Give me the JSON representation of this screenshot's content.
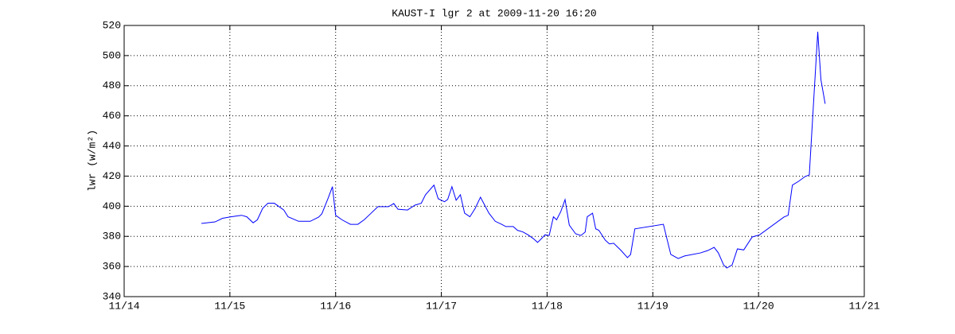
{
  "chart_data": {
    "type": "line",
    "title": "KAUST-I lgr 2 at 2009-11-20 16:20",
    "y_label": "lwr (w/m²)",
    "xlim": [
      14,
      21
    ],
    "xticks": [
      {
        "value": 14,
        "label": "11/14"
      },
      {
        "value": 15,
        "label": "11/15"
      },
      {
        "value": 16,
        "label": "11/16"
      },
      {
        "value": 17,
        "label": "11/17"
      },
      {
        "value": 18,
        "label": "11/18"
      },
      {
        "value": 19,
        "label": "11/19"
      },
      {
        "value": 20,
        "label": "11/20"
      },
      {
        "value": 21,
        "label": "11/21"
      }
    ],
    "ylim": [
      340,
      520
    ],
    "yticks": [
      340,
      360,
      380,
      400,
      420,
      440,
      460,
      480,
      500,
      520
    ],
    "grid": true,
    "series": [
      {
        "name": "lwr",
        "color": "#0000ff",
        "x": [
          14.73,
          14.86,
          14.93,
          15.01,
          15.11,
          15.16,
          15.22,
          15.26,
          15.31,
          15.36,
          15.42,
          15.51,
          15.55,
          15.65,
          15.76,
          15.84,
          15.87,
          15.93,
          15.97,
          16.0,
          16.06,
          16.14,
          16.21,
          16.27,
          16.33,
          16.4,
          16.5,
          16.55,
          16.59,
          16.68,
          16.75,
          16.81,
          16.85,
          16.93,
          16.97,
          17.03,
          17.06,
          17.1,
          17.14,
          17.18,
          17.22,
          17.27,
          17.32,
          17.37,
          17.45,
          17.51,
          17.57,
          17.61,
          17.68,
          17.72,
          17.77,
          17.82,
          17.87,
          17.91,
          17.94,
          17.98,
          18.02,
          18.06,
          18.09,
          18.13,
          18.17,
          18.21,
          18.27,
          18.32,
          18.36,
          18.38,
          18.43,
          18.46,
          18.49,
          18.55,
          18.59,
          18.63,
          18.7,
          18.76,
          18.79,
          18.83,
          19.1,
          19.17,
          19.24,
          19.3,
          19.45,
          19.52,
          19.58,
          19.62,
          19.67,
          19.7,
          19.75,
          19.8,
          19.86,
          19.94,
          20.01,
          20.24,
          20.28,
          20.32,
          20.38,
          20.44,
          20.48,
          20.56,
          20.59,
          20.63
        ],
        "values": [
          388.6,
          389.6,
          392,
          393,
          394,
          393,
          389,
          391,
          398.6,
          402,
          402,
          397.5,
          393,
          390,
          390,
          392.8,
          395,
          405.5,
          413,
          394,
          391,
          388,
          388,
          391,
          395,
          399.7,
          399.7,
          401.8,
          398,
          397.5,
          400.7,
          402,
          407.6,
          414,
          405,
          403,
          404.5,
          413,
          404,
          407.6,
          395.4,
          393,
          398.6,
          406,
          395.4,
          390,
          388,
          386.5,
          386.5,
          384,
          383,
          381,
          378.5,
          376,
          378,
          381,
          380.6,
          393,
          391,
          396.5,
          404.4,
          387.5,
          381.7,
          380.6,
          382.8,
          393,
          395.4,
          385,
          384,
          377.5,
          375,
          375.4,
          370.6,
          365.9,
          368,
          385,
          388,
          368,
          365.3,
          367,
          369,
          370.6,
          372.7,
          369,
          361,
          359,
          361,
          371.7,
          371,
          379.6,
          381,
          392.8,
          394,
          414,
          416.6,
          419.7,
          420.8,
          515.8,
          484,
          468
        ]
      }
    ]
  }
}
